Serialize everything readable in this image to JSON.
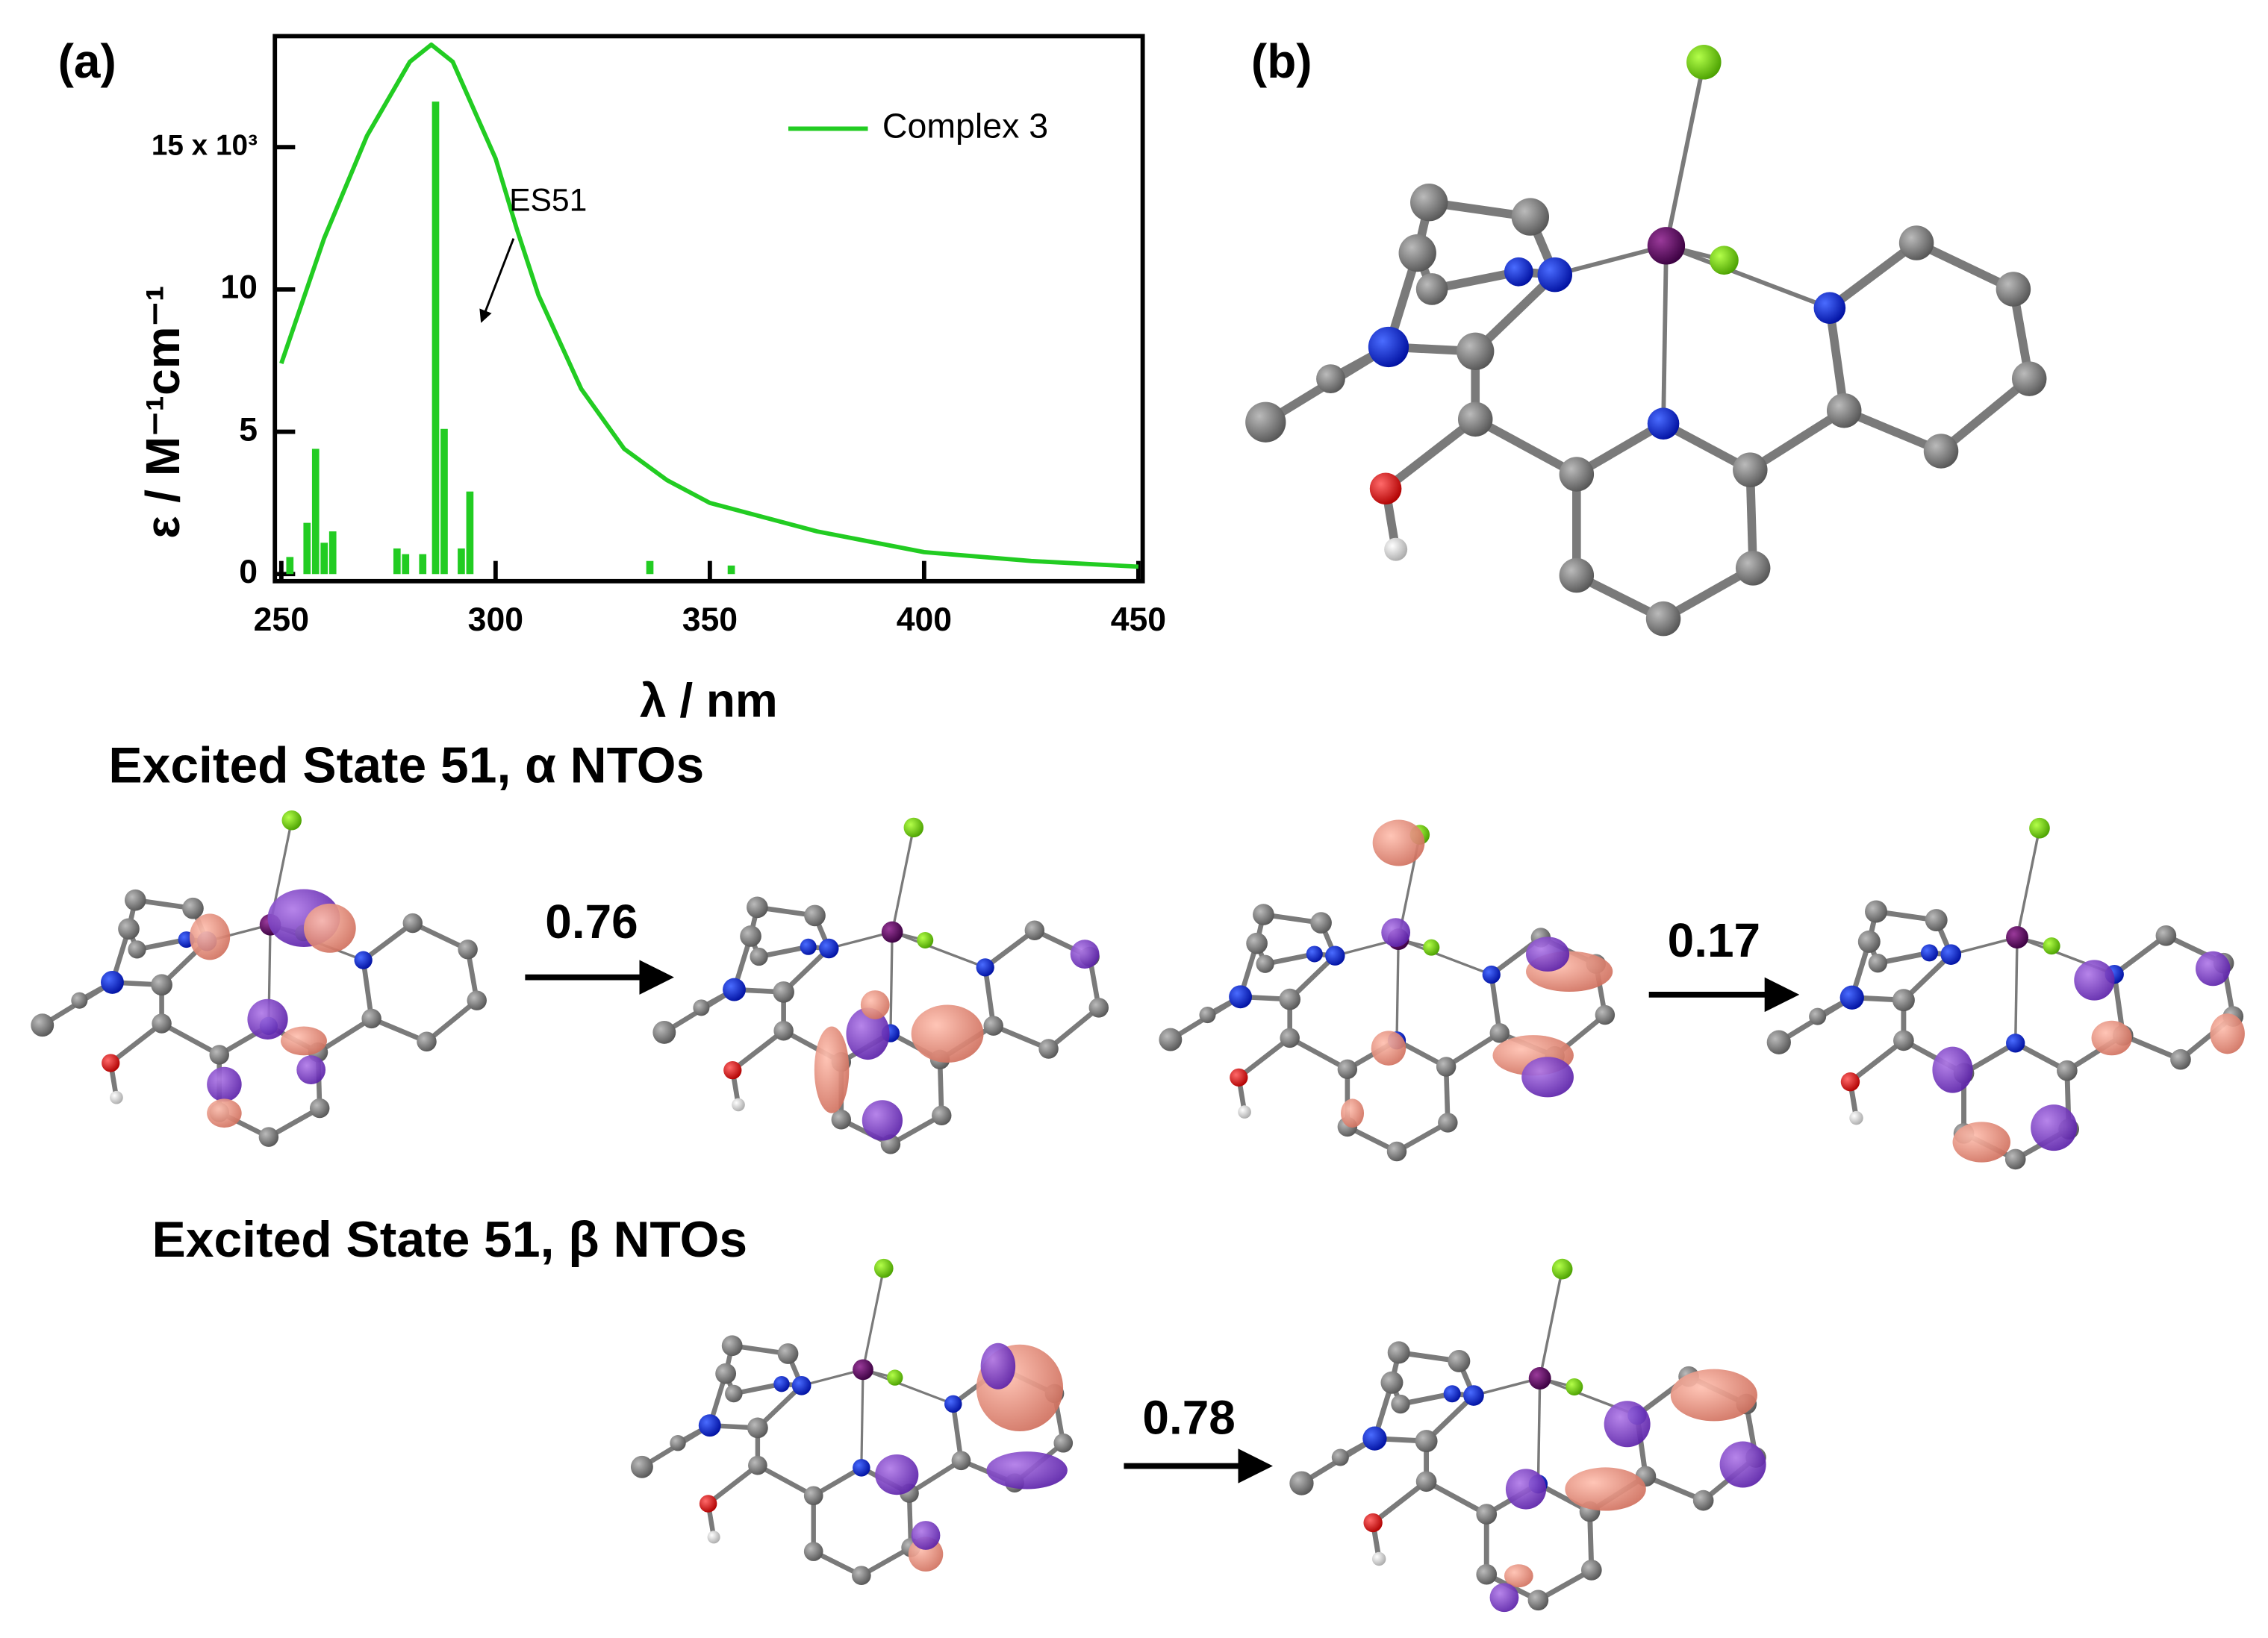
{
  "chart_data": {
    "type": "line",
    "x": [
      250,
      260,
      270,
      280,
      285,
      290,
      300,
      305,
      310,
      320,
      330,
      340,
      350,
      375,
      400,
      425,
      450
    ],
    "series": [
      {
        "name": "Complex 3",
        "color": "#22cc22",
        "values": [
          7.4,
          11.8,
          15.4,
          18.0,
          18.6,
          18.0,
          14.6,
          12.1,
          9.8,
          6.5,
          4.4,
          3.3,
          2.5,
          1.5,
          0.77,
          0.46,
          0.26
        ]
      }
    ],
    "sticks": {
      "color": "#22cc22",
      "x": [
        252,
        256,
        258,
        260,
        262,
        277,
        279,
        283,
        286,
        288,
        292,
        294,
        336,
        355
      ],
      "values": [
        0.6,
        1.8,
        4.4,
        1.1,
        1.5,
        0.9,
        0.7,
        0.7,
        16.6,
        5.1,
        0.9,
        2.9,
        0.46,
        0.3
      ]
    },
    "xlim": [
      248.5,
      451
    ],
    "ylim": [
      -0.25,
      18.9
    ],
    "xticks": [
      250,
      300,
      350,
      400,
      450
    ],
    "yticks": [
      0,
      5,
      10,
      {
        "value": 15,
        "label": "15 x 10³"
      }
    ],
    "xlabel": "λ / nm",
    "ylabel": "ε / M⁻¹cm⁻¹",
    "annotation": "ES51",
    "legend": "upper right"
  },
  "panel_labels": [
    "(a)",
    "(b)"
  ],
  "headings": [
    "Excited State 51, α NTOs",
    "Excited State 51, β NTOs"
  ],
  "transitions": [
    "0.76",
    "0.17",
    "0.78"
  ]
}
